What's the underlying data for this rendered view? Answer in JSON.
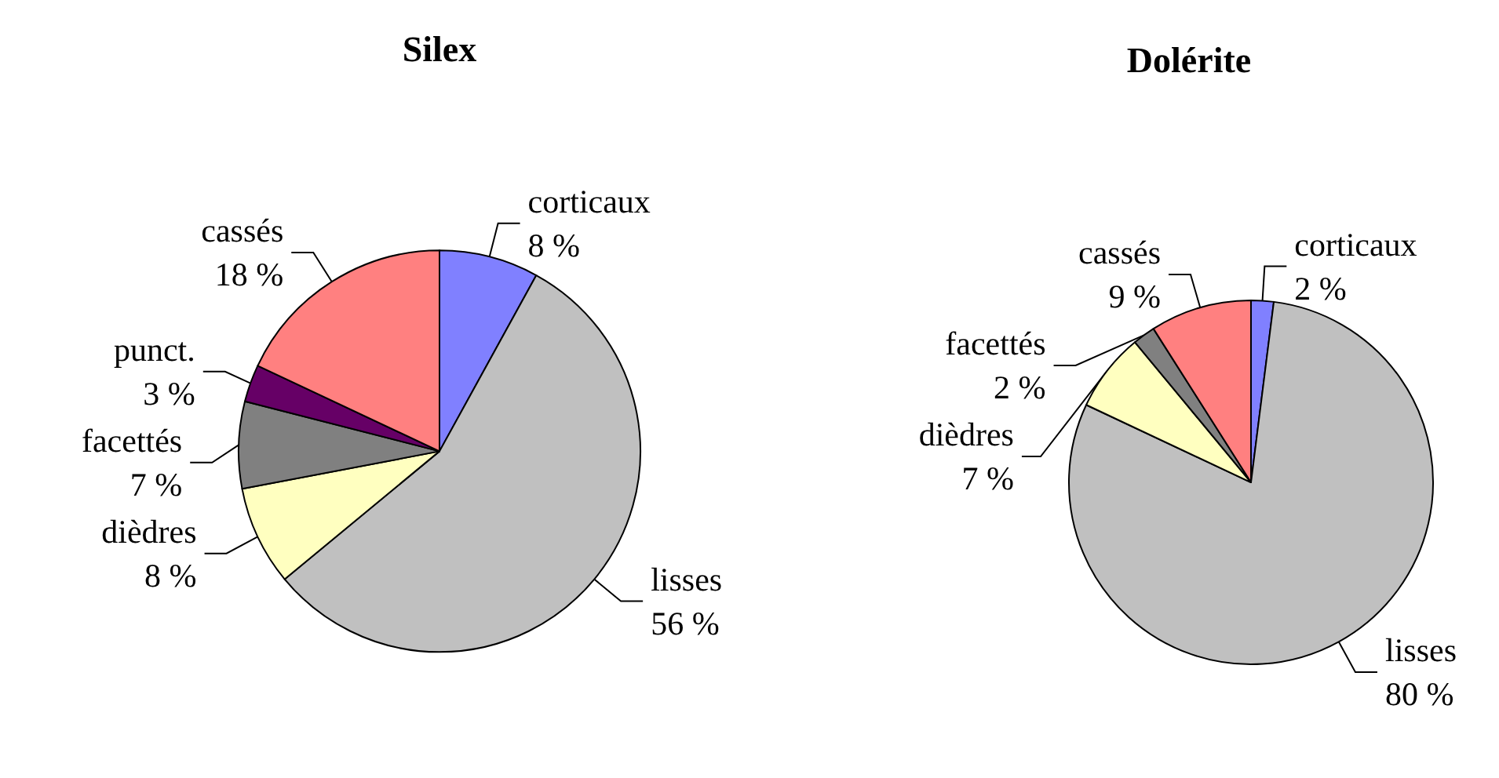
{
  "chart_data": [
    {
      "type": "pie",
      "title": "Silex",
      "categories": [
        "corticaux",
        "lisses",
        "dièdres",
        "facettés",
        "punct.",
        "cassés"
      ],
      "values": [
        8,
        56,
        8,
        7,
        3,
        18
      ],
      "value_labels": [
        "8 %",
        "56 %",
        "8 %",
        "7 %",
        "3 %",
        "18 %"
      ],
      "colors": [
        "#8080ff",
        "#c0c0c0",
        "#ffffc0",
        "#808080",
        "#660066",
        "#ff8080"
      ],
      "legend": false
    },
    {
      "type": "pie",
      "title": "Dolérite",
      "categories": [
        "corticaux",
        "lisses",
        "dièdres",
        "facettés",
        "cassés"
      ],
      "values": [
        2,
        80,
        7,
        2,
        9
      ],
      "value_labels": [
        "2 %",
        "80 %",
        "7 %",
        "2 %",
        "9 %"
      ],
      "colors": [
        "#8080ff",
        "#c0c0c0",
        "#ffffc0",
        "#808080",
        "#ff8080"
      ],
      "legend": false
    }
  ]
}
